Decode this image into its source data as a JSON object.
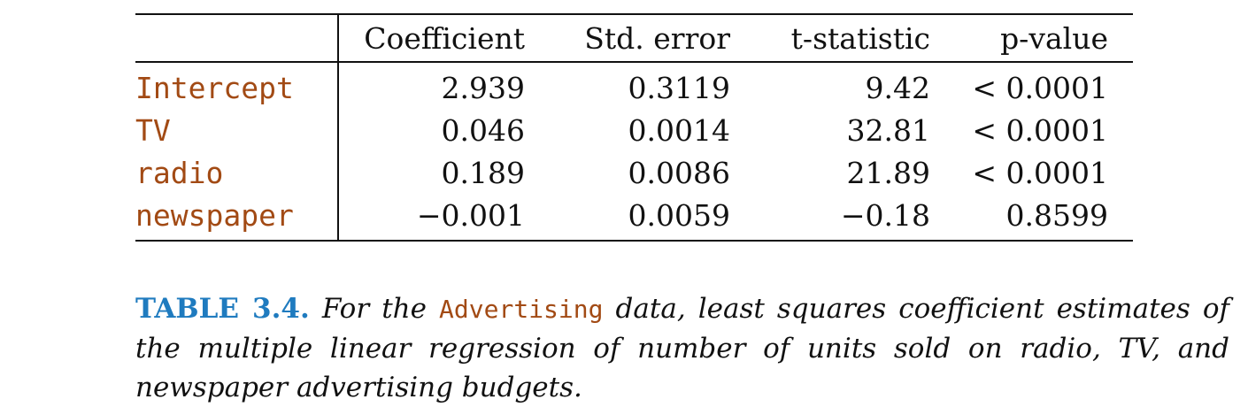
{
  "table": {
    "headers": [
      "",
      "Coefficient",
      "Std. error",
      "t-statistic",
      "p-value"
    ],
    "rows": [
      {
        "variable": "Intercept",
        "coefficient": "2.939",
        "std_error": "0.3119",
        "t_statistic": "9.42",
        "p_value": "< 0.0001"
      },
      {
        "variable": "TV",
        "coefficient": "0.046",
        "std_error": "0.0014",
        "t_statistic": "32.81",
        "p_value": "< 0.0001"
      },
      {
        "variable": "radio",
        "coefficient": "0.189",
        "std_error": "0.0086",
        "t_statistic": "21.89",
        "p_value": "< 0.0001"
      },
      {
        "variable": "newspaper",
        "coefficient": "−0.001",
        "std_error": "0.0059",
        "t_statistic": "−0.18",
        "p_value": "0.8599"
      }
    ]
  },
  "caption": {
    "label": "TABLE 3.4.",
    "text_before": "For the",
    "dataset": "Advertising",
    "text_after": "data, least squares coefficient estimates of the multiple linear regression of number of units sold on radio, TV, and newspaper advertising budgets."
  },
  "colors": {
    "variable_text": "#a24a14",
    "caption_label": "#1f7bbf",
    "text": "#111111"
  }
}
